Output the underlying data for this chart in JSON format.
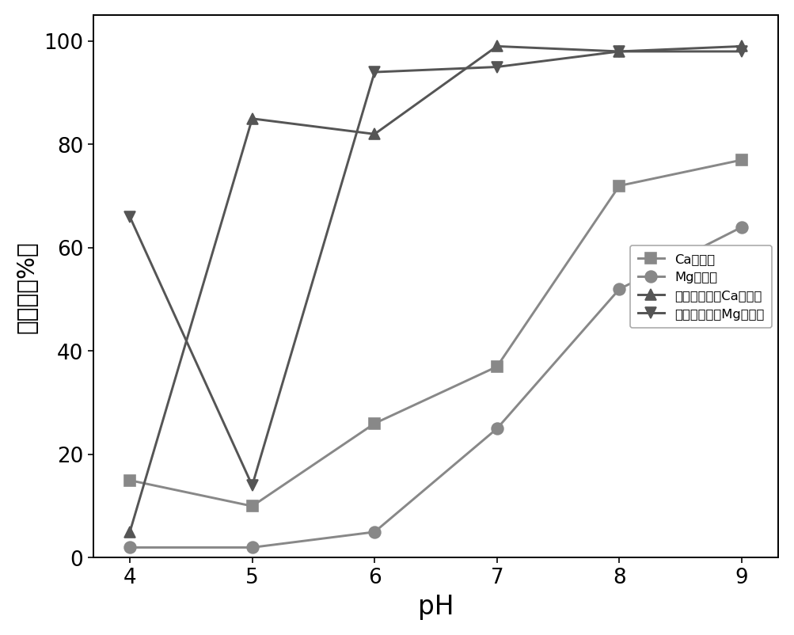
{
  "x": [
    4,
    5,
    6,
    7,
    8,
    9
  ],
  "series": [
    {
      "label": "Ca去除率",
      "y": [
        15,
        10,
        26,
        37,
        72,
        77
      ],
      "color": "#888888",
      "marker": "s",
      "linestyle": "-"
    },
    {
      "label": "Mg去除率",
      "y": [
        2,
        2,
        5,
        25,
        52,
        64
      ],
      "color": "#888888",
      "marker": "o",
      "linestyle": "-"
    },
    {
      "label": "添加吸附剂后Ca去除率",
      "y": [
        5,
        85,
        82,
        99,
        98,
        99
      ],
      "color": "#555555",
      "marker": "^",
      "linestyle": "-"
    },
    {
      "label": "添加吸附剂后Mg去除率",
      "y": [
        66,
        14,
        94,
        95,
        98,
        98
      ],
      "color": "#555555",
      "marker": "v",
      "linestyle": "-"
    }
  ],
  "xlabel": "pH",
  "ylabel": "去除率（%）",
  "xlim": [
    3.7,
    9.3
  ],
  "ylim": [
    0,
    105
  ],
  "yticks": [
    0,
    20,
    40,
    60,
    80,
    100
  ],
  "xticks": [
    4,
    5,
    6,
    7,
    8,
    9
  ],
  "xlabel_fontsize": 20,
  "ylabel_fontsize": 18,
  "tick_fontsize": 16,
  "legend_fontsize": 13,
  "linewidth": 1.8,
  "markersize": 9,
  "background_color": "#ffffff"
}
